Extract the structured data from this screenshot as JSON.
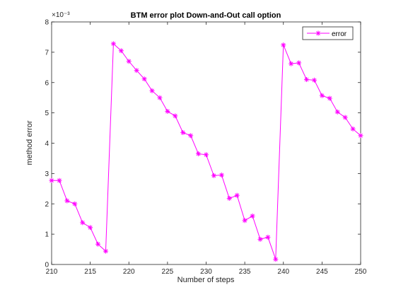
{
  "chart_data": {
    "type": "line",
    "title": "BTM error plot Down-and-Out call option",
    "xlabel": "Number of steps",
    "ylabel": "method error",
    "exponent_label": "×10⁻³",
    "xlim": [
      210,
      250
    ],
    "ylim": [
      0,
      8
    ],
    "xticks": [
      "210",
      "215",
      "220",
      "225",
      "230",
      "235",
      "240",
      "245",
      "250"
    ],
    "yticks": [
      "0",
      "1",
      "2",
      "3",
      "4",
      "5",
      "6",
      "7",
      "8"
    ],
    "grid": false,
    "legend_position": "top-right",
    "colors": {
      "series": "#ff00ff",
      "axes": "#262626",
      "background": "#ffffff"
    },
    "marker": "asterisk",
    "series": [
      {
        "name": "error",
        "x": [
          210,
          211,
          212,
          213,
          214,
          215,
          216,
          217,
          218,
          219,
          220,
          221,
          222,
          223,
          224,
          225,
          226,
          227,
          228,
          229,
          230,
          231,
          232,
          233,
          234,
          235,
          236,
          237,
          238,
          239,
          240,
          241,
          242,
          243,
          244,
          245,
          246,
          247,
          248,
          249,
          250
        ],
        "values": [
          2.77,
          2.77,
          2.1,
          2.0,
          1.38,
          1.22,
          0.67,
          0.44,
          7.28,
          7.05,
          6.7,
          6.4,
          6.12,
          5.73,
          5.5,
          5.05,
          4.9,
          4.35,
          4.25,
          3.65,
          3.62,
          2.93,
          2.95,
          2.18,
          2.28,
          1.45,
          1.6,
          0.83,
          0.9,
          0.17,
          7.24,
          6.62,
          6.65,
          6.1,
          6.08,
          5.57,
          5.48,
          5.03,
          4.85,
          4.47,
          4.25
        ]
      }
    ]
  }
}
